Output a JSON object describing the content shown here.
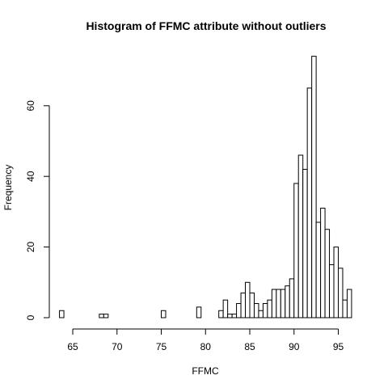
{
  "chart_data": {
    "type": "bar",
    "title": "Histogram of FFMC attribute without outliers",
    "xlabel": "FFMC",
    "ylabel": "Frequency",
    "bin_width": 0.5,
    "bin_start": 63.5,
    "counts": [
      2,
      0,
      0,
      0,
      0,
      0,
      0,
      0,
      0,
      1,
      1,
      0,
      0,
      0,
      0,
      0,
      0,
      0,
      0,
      0,
      0,
      0,
      0,
      2,
      0,
      0,
      0,
      0,
      0,
      0,
      0,
      3,
      0,
      0,
      0,
      0,
      2,
      5,
      1,
      1,
      4,
      7,
      10,
      7,
      4,
      2,
      4,
      5,
      8,
      8,
      8,
      9,
      11,
      38,
      46,
      42,
      65,
      74,
      27,
      31,
      25,
      15,
      20,
      14,
      5,
      8
    ],
    "xlim": [
      63.5,
      96.5
    ],
    "ylim": [
      0,
      74
    ],
    "x_ticks": [
      65,
      70,
      75,
      80,
      85,
      90,
      95
    ],
    "y_ticks": [
      0,
      20,
      40,
      60
    ],
    "x_tick_labels": [
      "65",
      "70",
      "75",
      "80",
      "85",
      "90",
      "95"
    ],
    "y_tick_labels": [
      "0",
      "20",
      "40",
      "60"
    ],
    "grid": false,
    "colors": {
      "bar_fill": "#ffffff",
      "bar_stroke": "#000000",
      "axis": "#000000"
    }
  }
}
